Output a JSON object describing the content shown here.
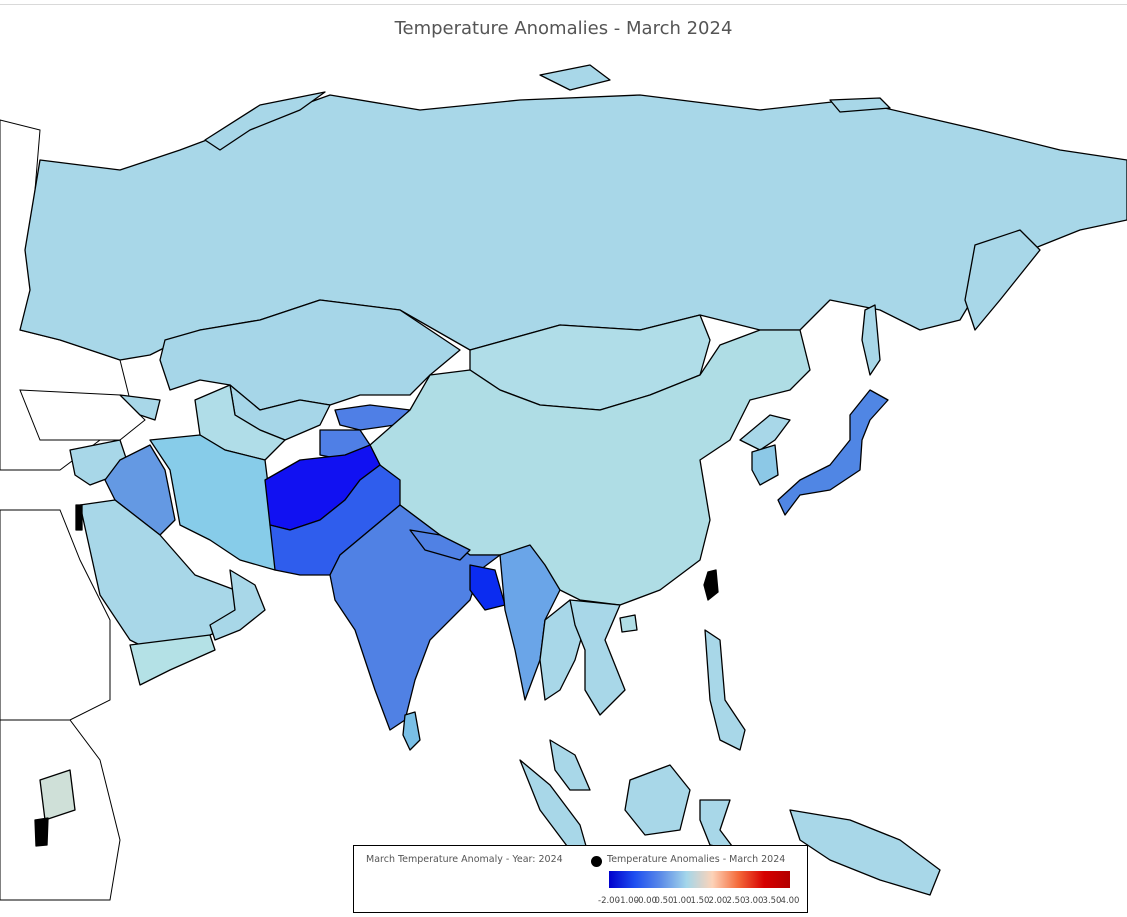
{
  "title": "Temperature Anomalies - March 2024",
  "legend": {
    "name": "March Temperature Anomaly - Year: 2024",
    "series": "Temperature Anomalies - March 2024",
    "ticks": [
      "-2.00",
      "-1.00",
      "-0.00",
      "0.50",
      "1.00",
      "1.50",
      "2.00",
      "2.50",
      "3.00",
      "3.50",
      "4.00"
    ],
    "colors": [
      "#0000cd",
      "#1e4ff0",
      "#5b8be8",
      "#a4d6ea",
      "#fdd3b8",
      "#f46a3a",
      "#d60000",
      "#b30000"
    ]
  }
}
